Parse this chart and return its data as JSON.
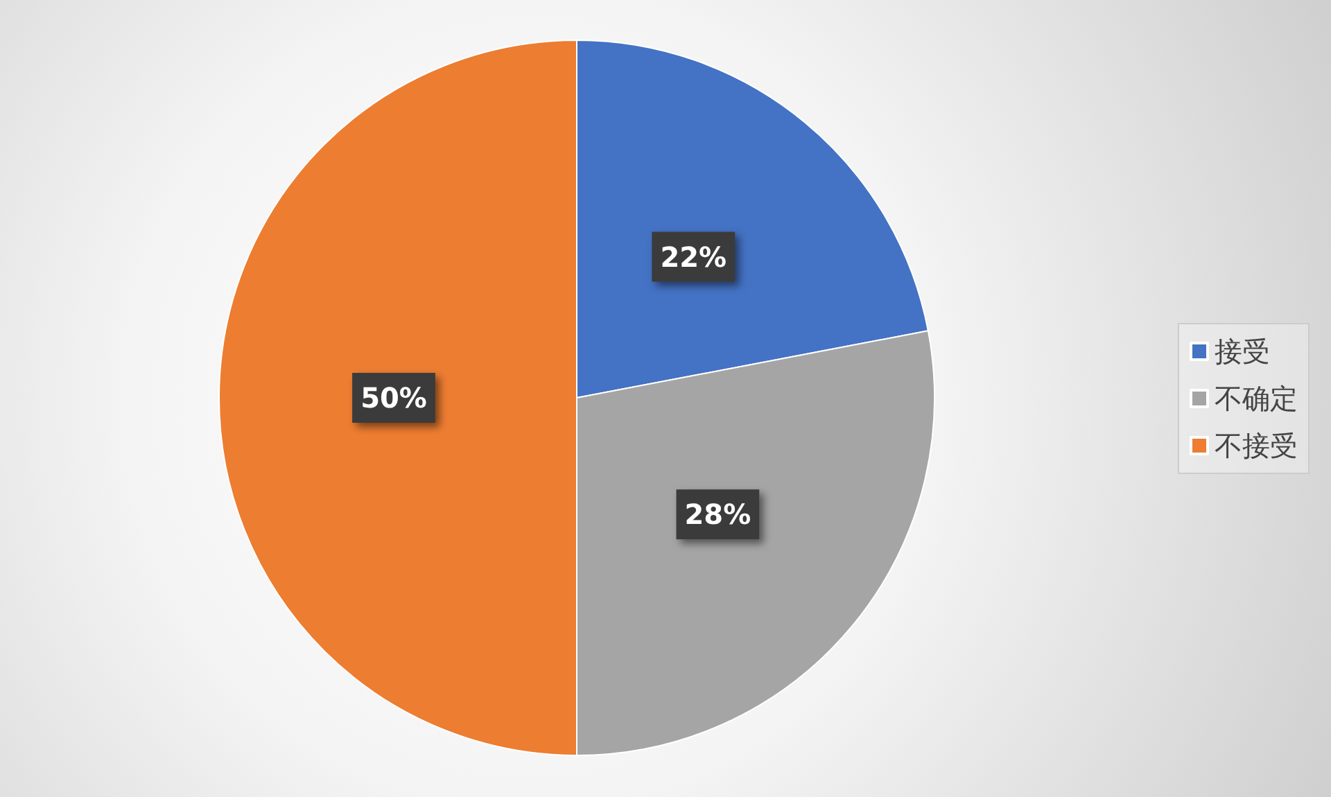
{
  "chart_data": {
    "type": "pie",
    "categories": [
      "接受",
      "不确定",
      "不接受"
    ],
    "values": [
      22,
      28,
      50
    ],
    "colors": [
      "#4472c4",
      "#a5a5a5",
      "#ed7d31"
    ],
    "value_labels": [
      "22%",
      "28%",
      "50%"
    ],
    "legend": "right"
  }
}
